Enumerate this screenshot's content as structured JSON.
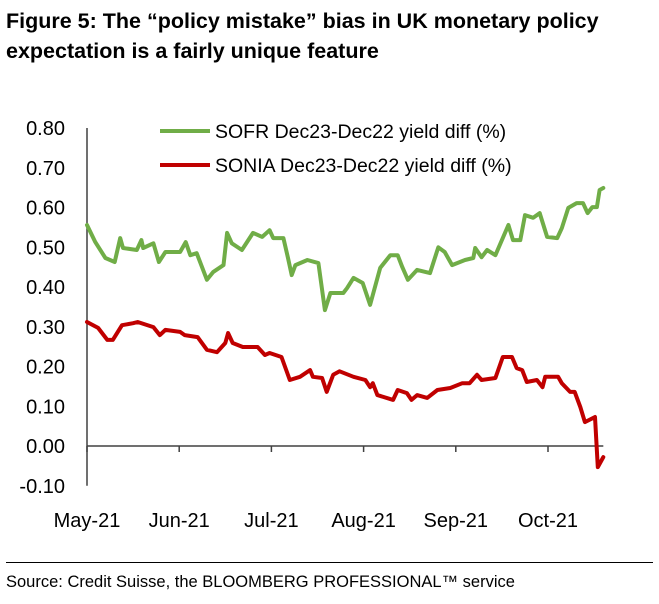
{
  "title": "Figure 5: The “policy mistake” bias in UK monetary policy expectation is a fairly unique feature",
  "source": "Source: Credit Suisse, the BLOOMBERG PROFESSIONAL™ service",
  "chart_data": {
    "type": "line",
    "title": "Figure 5: The “policy mistake” bias in UK monetary policy expectation is a fairly unique feature",
    "xlabel": "",
    "ylabel": "",
    "x_unit": "months since start of May-21",
    "x_ticks": [
      0,
      1,
      2,
      3,
      4,
      5
    ],
    "x_tick_labels": [
      "May-21",
      "Jun-21",
      "Jul-21",
      "Aug-21",
      "Sep-21",
      "Oct-21"
    ],
    "xlim": [
      0,
      5.6
    ],
    "ylim": [
      -0.1,
      0.8
    ],
    "y_ticks": [
      0.8,
      0.7,
      0.6,
      0.5,
      0.4,
      0.3,
      0.2,
      0.1,
      0.0,
      -0.1
    ],
    "y_tick_labels": [
      "0.80",
      "0.70",
      "0.60",
      "0.50",
      "0.40",
      "0.30",
      "0.20",
      "0.10",
      "0.00",
      "-0.10"
    ],
    "grid": false,
    "legend_position": "top",
    "series": [
      {
        "name": "SOFR Dec23-Dec22 yield diff (%)",
        "color": "#70ad47",
        "x": [
          0,
          0.09,
          0.2,
          0.3,
          0.36,
          0.39,
          0.54,
          0.59,
          0.61,
          0.72,
          0.78,
          0.85,
          1.01,
          1.07,
          1.12,
          1.19,
          1.3,
          1.37,
          1.48,
          1.52,
          1.57,
          1.68,
          1.8,
          1.9,
          1.98,
          2.02,
          2.13,
          2.18,
          2.22,
          2.26,
          2.39,
          2.51,
          2.58,
          2.64,
          2.78,
          2.82,
          2.89,
          2.99,
          3.07,
          3.18,
          3.29,
          3.37,
          3.42,
          3.48,
          3.58,
          3.72,
          3.81,
          3.88,
          3.96,
          4.1,
          4.19,
          4.21,
          4.28,
          4.34,
          4.43,
          4.57,
          4.62,
          4.7,
          4.75,
          4.84,
          4.91,
          4.99,
          5.1,
          5.15,
          5.22,
          5.31,
          5.38,
          5.43,
          5.48,
          5.53,
          5.56,
          5.6
        ],
        "values": [
          0.556,
          0.513,
          0.473,
          0.463,
          0.523,
          0.498,
          0.493,
          0.518,
          0.498,
          0.51,
          0.463,
          0.488,
          0.488,
          0.513,
          0.48,
          0.485,
          0.418,
          0.438,
          0.455,
          0.536,
          0.51,
          0.493,
          0.536,
          0.526,
          0.543,
          0.523,
          0.523,
          0.473,
          0.43,
          0.455,
          0.468,
          0.46,
          0.342,
          0.385,
          0.385,
          0.397,
          0.423,
          0.41,
          0.355,
          0.448,
          0.48,
          0.48,
          0.45,
          0.418,
          0.443,
          0.435,
          0.5,
          0.488,
          0.455,
          0.468,
          0.473,
          0.498,
          0.475,
          0.493,
          0.48,
          0.556,
          0.518,
          0.518,
          0.581,
          0.574,
          0.586,
          0.526,
          0.523,
          0.548,
          0.599,
          0.611,
          0.611,
          0.586,
          0.601,
          0.601,
          0.644,
          0.649
        ]
      },
      {
        "name": "SONIA Dec23-Dec22 yield diff (%)",
        "color": "#c00000",
        "x": [
          0,
          0.12,
          0.22,
          0.28,
          0.38,
          0.5,
          0.55,
          0.72,
          0.79,
          0.85,
          1.01,
          1.06,
          1.2,
          1.3,
          1.41,
          1.5,
          1.53,
          1.58,
          1.69,
          1.85,
          1.93,
          1.98,
          2.11,
          2.2,
          2.31,
          2.42,
          2.45,
          2.55,
          2.6,
          2.67,
          2.74,
          2.89,
          3.02,
          3.07,
          3.1,
          3.15,
          3.32,
          3.37,
          3.47,
          3.52,
          3.58,
          3.69,
          3.8,
          3.94,
          4.07,
          4.15,
          4.23,
          4.28,
          4.43,
          4.51,
          4.61,
          4.66,
          4.72,
          4.77,
          4.88,
          4.94,
          4.97,
          5.11,
          5.15,
          5.24,
          5.29,
          5.35,
          5.4,
          5.51,
          5.54,
          5.6
        ],
        "values": [
          0.312,
          0.297,
          0.267,
          0.267,
          0.304,
          0.309,
          0.312,
          0.299,
          0.279,
          0.292,
          0.287,
          0.279,
          0.274,
          0.242,
          0.236,
          0.259,
          0.284,
          0.259,
          0.249,
          0.249,
          0.229,
          0.234,
          0.224,
          0.166,
          0.174,
          0.191,
          0.174,
          0.171,
          0.136,
          0.179,
          0.188,
          0.174,
          0.166,
          0.148,
          0.158,
          0.128,
          0.116,
          0.141,
          0.133,
          0.116,
          0.128,
          0.121,
          0.141,
          0.146,
          0.158,
          0.158,
          0.179,
          0.166,
          0.171,
          0.224,
          0.224,
          0.196,
          0.191,
          0.161,
          0.166,
          0.148,
          0.174,
          0.174,
          0.158,
          0.136,
          0.136,
          0.098,
          0.06,
          0.073,
          -0.053,
          -0.028
        ]
      }
    ]
  }
}
